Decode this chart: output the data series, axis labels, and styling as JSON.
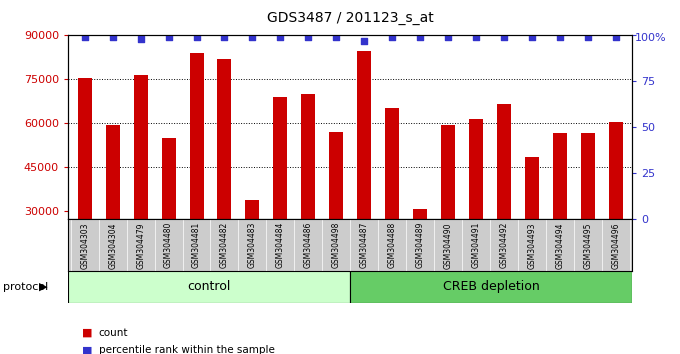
{
  "title": "GDS3487 / 201123_s_at",
  "samples": [
    "GSM304303",
    "GSM304304",
    "GSM304479",
    "GSM304480",
    "GSM304481",
    "GSM304482",
    "GSM304483",
    "GSM304484",
    "GSM304486",
    "GSM304498",
    "GSM304487",
    "GSM304488",
    "GSM304489",
    "GSM304490",
    "GSM304491",
    "GSM304492",
    "GSM304493",
    "GSM304494",
    "GSM304495",
    "GSM304496"
  ],
  "bar_values": [
    75500,
    59500,
    76500,
    55000,
    84000,
    82000,
    33500,
    69000,
    70000,
    57000,
    84500,
    65000,
    30500,
    59500,
    61500,
    66500,
    48500,
    56500,
    56500,
    60500
  ],
  "percentile_values": [
    99,
    99,
    98,
    99,
    99,
    99,
    99,
    99,
    99,
    99,
    97,
    99,
    99,
    99,
    99,
    99,
    99,
    99,
    99,
    99
  ],
  "control_count": 10,
  "creb_count": 10,
  "control_label": "control",
  "creb_label": "CREB depletion",
  "protocol_label": "protocol",
  "bar_color": "#cc0000",
  "percentile_color": "#3333cc",
  "ylim_left": [
    27000,
    90000
  ],
  "yticks_left": [
    30000,
    45000,
    60000,
    75000,
    90000
  ],
  "ylim_right": [
    0,
    100
  ],
  "yticks_right": [
    0,
    25,
    50,
    75,
    100
  ],
  "background_color": "#ffffff",
  "plot_bg_color": "#ffffff",
  "grid_color": "#000000",
  "legend_count_label": "count",
  "legend_percentile_label": "percentile rank within the sample",
  "control_bg": "#ccffcc",
  "creb_bg": "#66cc66",
  "sample_bg": "#cccccc"
}
